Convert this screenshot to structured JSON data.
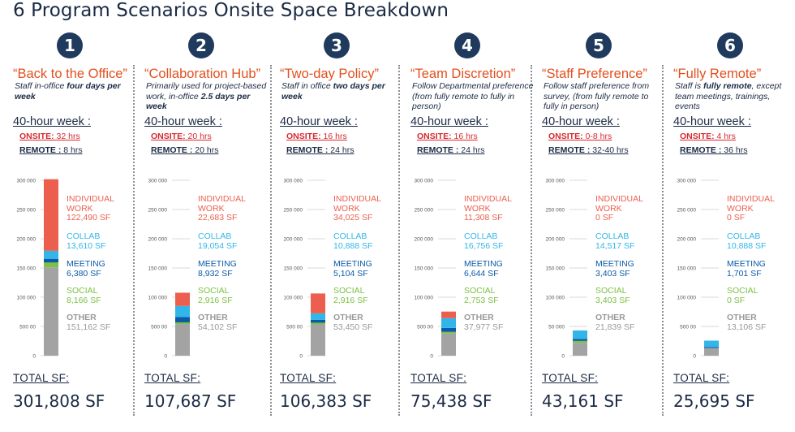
{
  "title": "6 Program Scenarios Onsite Space Breakdown",
  "colors": {
    "individual": "#ec5f4e",
    "collab": "#32b6ea",
    "meeting": "#0a5aa8",
    "social": "#7cc142",
    "other": "#a3a3a3",
    "badge": "#1f3a5c",
    "name": "#e2501e",
    "onsite": "#d6282f"
  },
  "labels": {
    "week": "40-hour week :",
    "onsite": "ONSITE:",
    "remote": "REMOTE :",
    "total": "TOTAL SF:",
    "individual_line1": "INDIVIDUAL",
    "individual_line2": "WORK",
    "collab": "COLLAB",
    "meeting": "MEETING",
    "social": "SOCIAL",
    "other": "OTHER"
  },
  "scenarios": [
    {
      "number": "1",
      "name": "“Back to the Office”",
      "desc_pre": "Staff in-office ",
      "desc_bold": "four days per week",
      "desc_post": "",
      "onsite_hrs": "32 hrs",
      "remote_hrs": "8 hrs",
      "total": "301,808 SF",
      "individual_text": "122,490 SF",
      "collab_text": "13,610 SF",
      "meeting_text": "6,380 SF",
      "social_text": "8,166 SF",
      "other_text": "151,162 SF"
    },
    {
      "number": "2",
      "name": "“Collaboration Hub”",
      "desc_pre": "Primarily used for project-based work, in-office ",
      "desc_bold": "2.5 days per week",
      "desc_post": "",
      "onsite_hrs": "20 hrs",
      "remote_hrs": "20 hrs",
      "total": "107,687 SF",
      "individual_text": "22,683 SF",
      "collab_text": "19,054 SF",
      "meeting_text": "8,932 SF",
      "social_text": "2,916 SF",
      "other_text": "54,102 SF"
    },
    {
      "number": "3",
      "name": "“Two-day Policy”",
      "desc_pre": "Staff in office ",
      "desc_bold": "two days per week",
      "desc_post": "",
      "onsite_hrs": "16 hrs",
      "remote_hrs": "24 hrs",
      "total": "106,383 SF",
      "individual_text": "34,025 SF",
      "collab_text": "10,888 SF",
      "meeting_text": "5,104 SF",
      "social_text": "2,916 SF",
      "other_text": "53,450 SF"
    },
    {
      "number": "4",
      "name": "“Team Discretion”",
      "desc_pre": "Follow Departmental preference (from fully remote to fully in person)",
      "desc_bold": "",
      "desc_post": "",
      "onsite_hrs": "16 hrs",
      "remote_hrs": "24 hrs",
      "total": "75,438 SF",
      "individual_text": "11,308 SF",
      "collab_text": "16,756 SF",
      "meeting_text": "6,644 SF",
      "social_text": "2,753 SF",
      "other_text": "37,977 SF"
    },
    {
      "number": "5",
      "name": "“Staff Preference”",
      "desc_pre": "Follow staff preference from survey, (from fully remote to fully in person)",
      "desc_bold": "",
      "desc_post": "",
      "onsite_hrs": "0-8 hrs",
      "remote_hrs": "32-40 hrs",
      "total": "43,161 SF",
      "individual_text": "0 SF",
      "collab_text": "14,517 SF",
      "meeting_text": "3,403 SF",
      "social_text": "3,403 SF",
      "other_text": "21,839 SF"
    },
    {
      "number": "6",
      "name": "“Fully Remote”",
      "desc_pre": "Staff is ",
      "desc_bold": "fully remote",
      "desc_post": ", except team meetings, trainings, events",
      "onsite_hrs": "4 hrs",
      "remote_hrs": "36 hrs",
      "total": "25,695 SF",
      "individual_text": "0 SF",
      "collab_text": "10,888 SF",
      "meeting_text": "1,701 SF",
      "social_text": "0 SF",
      "other_text": "13,106 SF"
    }
  ],
  "chart_data": [
    {
      "type": "bar",
      "stacked": true,
      "title": "“Back to the Office”",
      "series": [
        {
          "name": "OTHER",
          "values": [
            151162
          ]
        },
        {
          "name": "SOCIAL",
          "values": [
            8166
          ]
        },
        {
          "name": "MEETING",
          "values": [
            6380
          ]
        },
        {
          "name": "COLLAB",
          "values": [
            13610
          ]
        },
        {
          "name": "INDIVIDUAL WORK",
          "values": [
            122490
          ]
        }
      ],
      "yticks": [
        "300 000",
        "250 000",
        "200 000",
        "150 000",
        "100 000",
        "500 00",
        "0"
      ],
      "ylim": [
        0,
        300000
      ],
      "grid": true
    },
    {
      "type": "bar",
      "stacked": true,
      "title": "“Collaboration Hub”",
      "series": [
        {
          "name": "OTHER",
          "values": [
            54102
          ]
        },
        {
          "name": "SOCIAL",
          "values": [
            2916
          ]
        },
        {
          "name": "MEETING",
          "values": [
            8932
          ]
        },
        {
          "name": "COLLAB",
          "values": [
            19054
          ]
        },
        {
          "name": "INDIVIDUAL WORK",
          "values": [
            22683
          ]
        }
      ],
      "yticks": [
        "300 000",
        "250 000",
        "200 000",
        "150 000",
        "100 000",
        "500 00",
        "0"
      ],
      "ylim": [
        0,
        300000
      ],
      "grid": true
    },
    {
      "type": "bar",
      "stacked": true,
      "title": "“Two-day Policy”",
      "series": [
        {
          "name": "OTHER",
          "values": [
            53450
          ]
        },
        {
          "name": "SOCIAL",
          "values": [
            2916
          ]
        },
        {
          "name": "MEETING",
          "values": [
            5104
          ]
        },
        {
          "name": "COLLAB",
          "values": [
            10888
          ]
        },
        {
          "name": "INDIVIDUAL WORK",
          "values": [
            34025
          ]
        }
      ],
      "yticks": [
        "300 000",
        "250 000",
        "200 000",
        "150 000",
        "100 000",
        "500 00",
        "0"
      ],
      "ylim": [
        0,
        300000
      ],
      "grid": true
    },
    {
      "type": "bar",
      "stacked": true,
      "title": "“Team Discretion”",
      "series": [
        {
          "name": "OTHER",
          "values": [
            37977
          ]
        },
        {
          "name": "SOCIAL",
          "values": [
            2753
          ]
        },
        {
          "name": "MEETING",
          "values": [
            6644
          ]
        },
        {
          "name": "COLLAB",
          "values": [
            16756
          ]
        },
        {
          "name": "INDIVIDUAL WORK",
          "values": [
            11308
          ]
        }
      ],
      "yticks": [
        "300 000",
        "250 000",
        "200 000",
        "150 000",
        "100 000",
        "500 00",
        "0"
      ],
      "ylim": [
        0,
        300000
      ],
      "grid": true
    },
    {
      "type": "bar",
      "stacked": true,
      "title": "“Staff Preference”",
      "series": [
        {
          "name": "OTHER",
          "values": [
            21839
          ]
        },
        {
          "name": "SOCIAL",
          "values": [
            3403
          ]
        },
        {
          "name": "MEETING",
          "values": [
            3403
          ]
        },
        {
          "name": "COLLAB",
          "values": [
            14517
          ]
        },
        {
          "name": "INDIVIDUAL WORK",
          "values": [
            0
          ]
        }
      ],
      "yticks": [
        "300 000",
        "250 000",
        "200 000",
        "150 000",
        "100 000",
        "50 000",
        "0"
      ],
      "ylim": [
        0,
        300000
      ],
      "grid": true
    },
    {
      "type": "bar",
      "stacked": true,
      "title": "“Fully Remote”",
      "series": [
        {
          "name": "OTHER",
          "values": [
            13106
          ]
        },
        {
          "name": "SOCIAL",
          "values": [
            0
          ]
        },
        {
          "name": "MEETING",
          "values": [
            1701
          ]
        },
        {
          "name": "COLLAB",
          "values": [
            10888
          ]
        },
        {
          "name": "INDIVIDUAL WORK",
          "values": [
            0
          ]
        }
      ],
      "yticks": [
        "300 000",
        "250 000",
        "200 000",
        "150 000",
        "100 000",
        "500 00",
        "0"
      ],
      "ylim": [
        0,
        300000
      ],
      "grid": true
    }
  ]
}
